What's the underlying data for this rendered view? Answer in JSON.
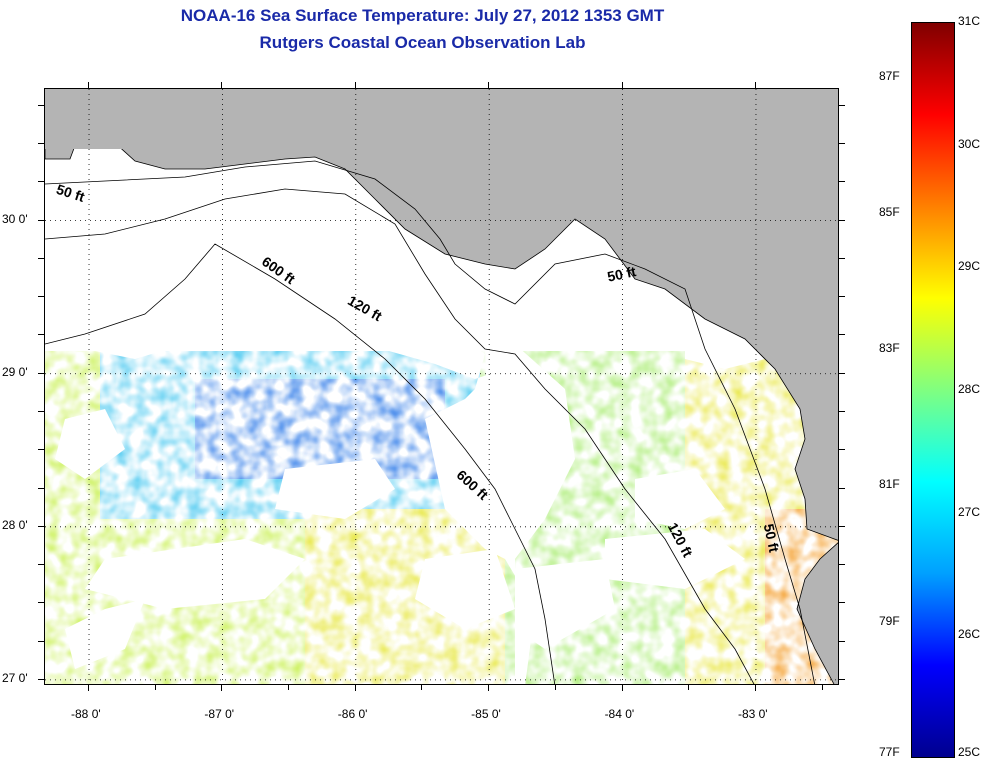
{
  "title": {
    "line1": "NOAA-16 Sea Surface Temperature:  July 27, 2012 1353 GMT",
    "line2": "Rutgers Coastal Ocean Observation Lab"
  },
  "map": {
    "lon_range": [
      -88.33,
      -82.37
    ],
    "lat_range": [
      26.96,
      30.86
    ],
    "x_ticks": [
      {
        "value": -88,
        "label": "-88 0'"
      },
      {
        "value": -87,
        "label": "-87 0'"
      },
      {
        "value": -86,
        "label": "-86 0'"
      },
      {
        "value": -85,
        "label": "-85 0'"
      },
      {
        "value": -84,
        "label": "-84 0'"
      },
      {
        "value": -83,
        "label": "-83 0'"
      }
    ],
    "y_ticks": [
      {
        "value": 30,
        "label": "30 0'"
      },
      {
        "value": 29,
        "label": "29 0'"
      },
      {
        "value": 28,
        "label": "28 0'"
      },
      {
        "value": 27,
        "label": "27 0'"
      }
    ],
    "land_color": "#b4b4b4",
    "grid": "dotted",
    "contour_labels": [
      {
        "text": "50 ft",
        "lon": -88.15,
        "lat": 30.15,
        "rotate": 18
      },
      {
        "text": "600 ft",
        "lon": -86.6,
        "lat": 29.65,
        "rotate": 35
      },
      {
        "text": "120 ft",
        "lon": -85.95,
        "lat": 29.4,
        "rotate": 30
      },
      {
        "text": "50 ft",
        "lon": -84.0,
        "lat": 29.62,
        "rotate": -12
      },
      {
        "text": "600 ft",
        "lon": -85.15,
        "lat": 28.25,
        "rotate": 42
      },
      {
        "text": "120 ft",
        "lon": -83.6,
        "lat": 27.9,
        "rotate": 62
      },
      {
        "text": "50 ft",
        "lon": -82.92,
        "lat": 27.92,
        "rotate": 78
      }
    ]
  },
  "colorbar": {
    "celsius_range": [
      25,
      31
    ],
    "celsius_labels": [
      "31C",
      "30C",
      "29C",
      "28C",
      "27C",
      "26C",
      "25C"
    ],
    "fahrenheit_labels": [
      "87F",
      "85F",
      "83F",
      "81F",
      "79F",
      "77F"
    ],
    "fahrenheit_values": [
      87,
      85,
      83,
      81,
      79,
      77
    ],
    "colormap": [
      "#00008f",
      "#0000ff",
      "#00a0ff",
      "#00ffff",
      "#80ff80",
      "#ffff00",
      "#ff8000",
      "#ff0000",
      "#800000"
    ]
  }
}
